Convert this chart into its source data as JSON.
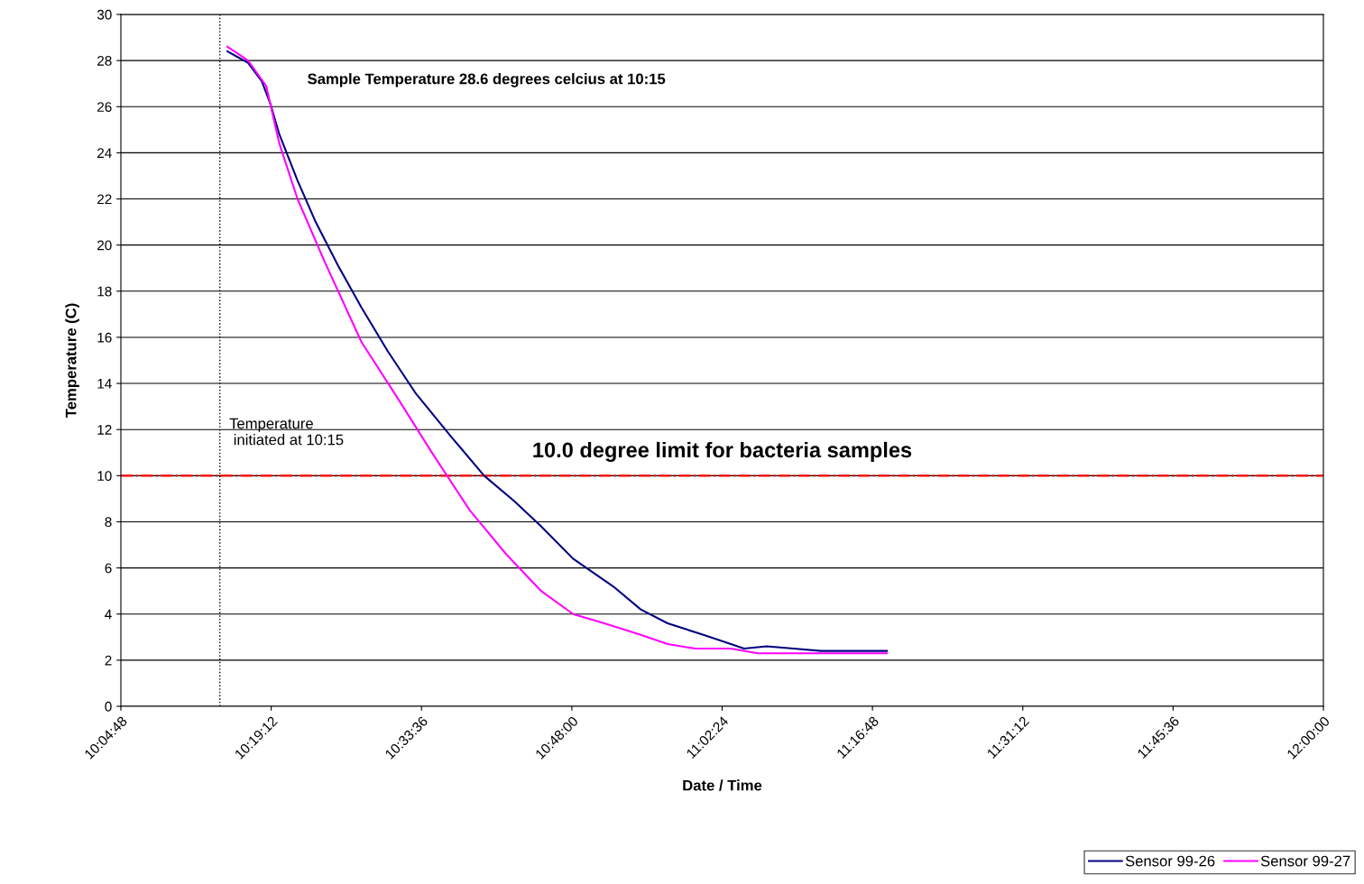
{
  "chart_data": {
    "type": "line",
    "xlabel": "Date / Time",
    "ylabel": "Temperature (C)",
    "xlim": [
      10.08,
      12.0
    ],
    "xticks": [
      {
        "value": 10.08,
        "label": "10:04:48"
      },
      {
        "value": 10.32,
        "label": "10:19:12"
      },
      {
        "value": 10.56,
        "label": "10:33:36"
      },
      {
        "value": 10.8,
        "label": "10:48:00"
      },
      {
        "value": 11.04,
        "label": "11:02:24"
      },
      {
        "value": 11.28,
        "label": "11:16:48"
      },
      {
        "value": 11.52,
        "label": "11:31:12"
      },
      {
        "value": 11.76,
        "label": "11:45:36"
      },
      {
        "value": 12.0,
        "label": "12:00:00"
      }
    ],
    "ylim": [
      0,
      30
    ],
    "yticks": [
      0,
      2,
      4,
      6,
      8,
      10,
      12,
      14,
      16,
      18,
      20,
      22,
      24,
      26,
      28,
      30
    ],
    "grid": "y",
    "legend": "bottom right",
    "marker": "none",
    "line_style": "solid",
    "series": [
      {
        "name": "Sensor 99-26",
        "color": "#000080",
        "x": [
          10.25,
          10.283,
          10.305,
          10.319,
          10.333,
          10.362,
          10.391,
          10.427,
          10.464,
          10.506,
          10.55,
          10.607,
          10.66,
          10.708,
          10.751,
          10.802,
          10.866,
          10.91,
          10.953,
          11.01,
          11.054,
          11.075,
          11.111,
          11.154,
          11.198,
          11.303
        ],
        "values": [
          28.4,
          27.9,
          27.1,
          26.1,
          24.8,
          22.8,
          21.0,
          19.1,
          17.3,
          15.4,
          13.6,
          11.7,
          10.0,
          8.9,
          7.8,
          6.4,
          5.2,
          4.2,
          3.6,
          3.1,
          2.7,
          2.5,
          2.6,
          2.5,
          2.4,
          2.4
        ]
      },
      {
        "name": "Sensor 99-27",
        "color": "#ff00ff",
        "x": [
          10.25,
          10.283,
          10.312,
          10.333,
          10.362,
          10.405,
          10.464,
          10.521,
          10.579,
          10.637,
          10.695,
          10.751,
          10.802,
          10.852,
          10.91,
          10.953,
          10.997,
          11.054,
          11.097,
          11.303
        ],
        "values": [
          28.6,
          28.0,
          26.9,
          24.4,
          22.0,
          19.3,
          15.8,
          13.4,
          10.9,
          8.5,
          6.6,
          5.0,
          4.0,
          3.6,
          3.1,
          2.7,
          2.5,
          2.5,
          2.3,
          2.3
        ]
      }
    ],
    "ref_lines": [
      {
        "axis": "x",
        "value": 10.238,
        "label": "Temperature\n initiated at 10:15",
        "color": "#000000",
        "line_style": "dotted"
      },
      {
        "axis": "y",
        "value": 10,
        "label": "10.0 degree limit for bacteria samples",
        "color": "#ff0000",
        "line_style": "dashdot"
      }
    ],
    "annotations": [
      "Sample Temperature 28.6 degrees celcius at 10:15"
    ]
  }
}
